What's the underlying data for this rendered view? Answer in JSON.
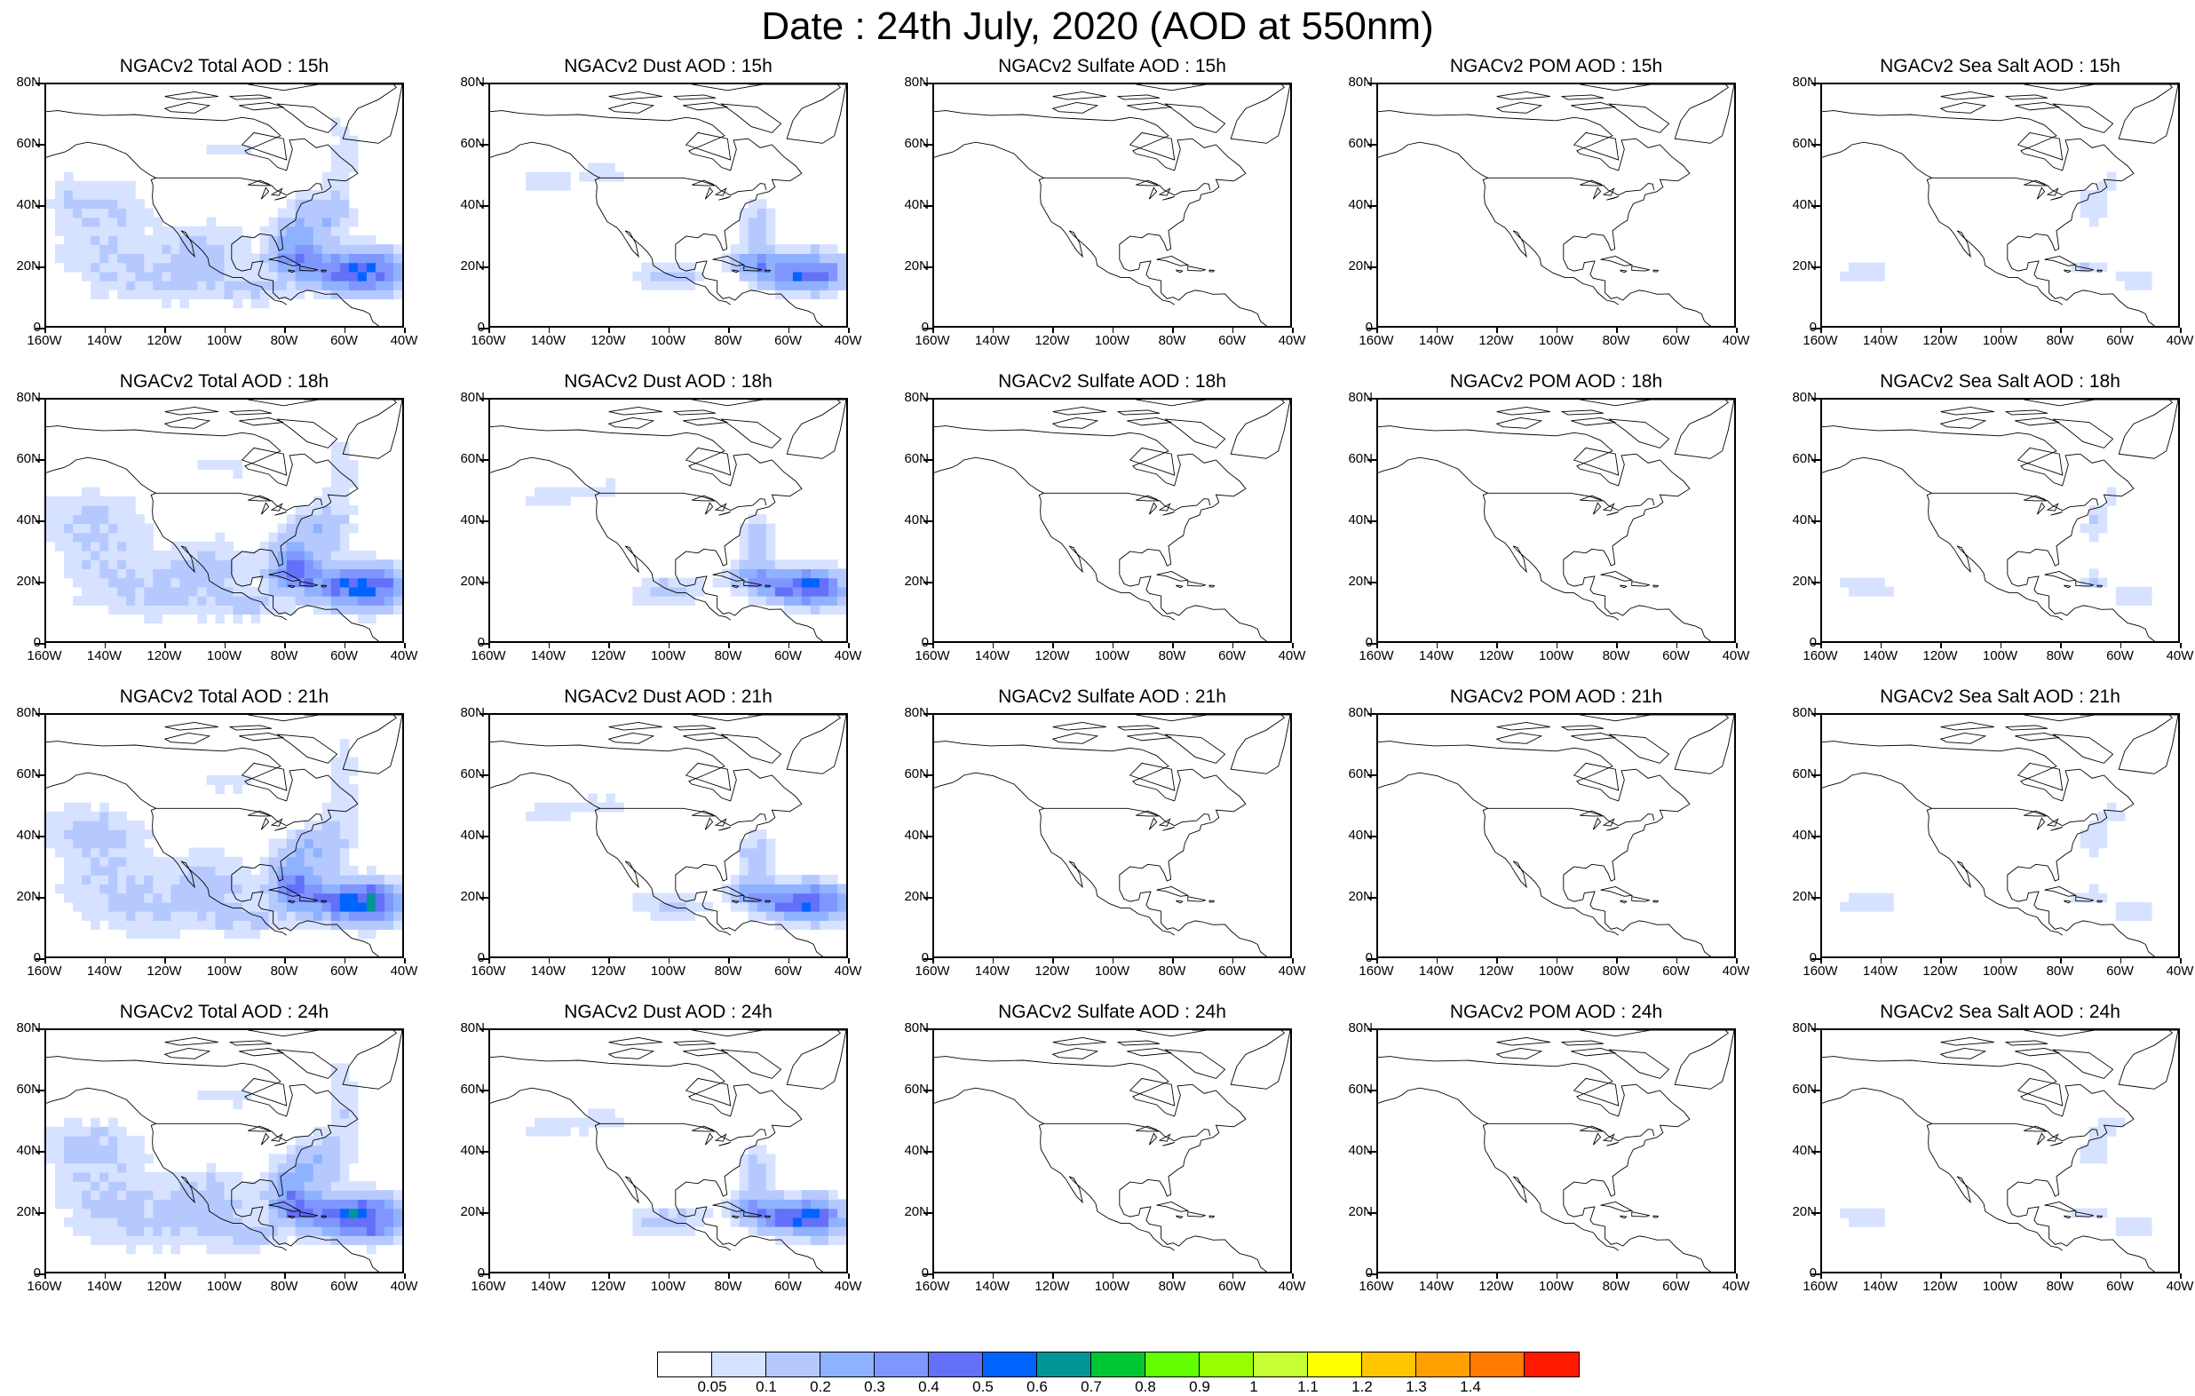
{
  "title": "Date : 24th July, 2020 (AOD at 550nm)",
  "x_tick_labels": [
    "160W",
    "140W",
    "120W",
    "100W",
    "80W",
    "60W",
    "40W"
  ],
  "y_tick_labels": [
    "0",
    "20N",
    "40N",
    "60N",
    "80N"
  ],
  "lon_range": [
    -160,
    -40
  ],
  "lat_range": [
    0,
    80
  ],
  "columns": [
    "Total",
    "Dust",
    "Sulfate",
    "POM",
    "Sea Salt"
  ],
  "rows": [
    "15h",
    "18h",
    "21h",
    "24h"
  ],
  "panels": [
    {
      "title": "NGACv2 Total AOD : 15h",
      "species": "total"
    },
    {
      "title": "NGACv2 Dust AOD : 15h",
      "species": "dust"
    },
    {
      "title": "NGACv2 Sulfate AOD : 15h",
      "species": "sulfate"
    },
    {
      "title": "NGACv2 POM AOD : 15h",
      "species": "pom"
    },
    {
      "title": "NGACv2 Sea Salt AOD : 15h",
      "species": "seasalt"
    },
    {
      "title": "NGACv2 Total AOD : 18h",
      "species": "total"
    },
    {
      "title": "NGACv2 Dust AOD : 18h",
      "species": "dust"
    },
    {
      "title": "NGACv2 Sulfate AOD : 18h",
      "species": "sulfate"
    },
    {
      "title": "NGACv2 POM AOD : 18h",
      "species": "pom"
    },
    {
      "title": "NGACv2 Sea Salt AOD : 18h",
      "species": "seasalt"
    },
    {
      "title": "NGACv2 Total AOD : 21h",
      "species": "total"
    },
    {
      "title": "NGACv2 Dust AOD : 21h",
      "species": "dust"
    },
    {
      "title": "NGACv2 Sulfate AOD : 21h",
      "species": "sulfate"
    },
    {
      "title": "NGACv2 POM AOD : 21h",
      "species": "pom"
    },
    {
      "title": "NGACv2 Sea Salt AOD : 21h",
      "species": "seasalt"
    },
    {
      "title": "NGACv2 Total AOD : 24h",
      "species": "total"
    },
    {
      "title": "NGACv2 Dust AOD : 24h",
      "species": "dust"
    },
    {
      "title": "NGACv2 Sulfate AOD : 24h",
      "species": "sulfate"
    },
    {
      "title": "NGACv2 POM AOD : 24h",
      "species": "pom"
    },
    {
      "title": "NGACv2 Sea Salt  AOD : 24h",
      "species": "seasalt"
    }
  ],
  "colorbar": {
    "labels": [
      "0.05",
      "0.1",
      "0.2",
      "0.3",
      "0.4",
      "0.5",
      "0.6",
      "0.7",
      "0.8",
      "0.9",
      "1",
      "1.1",
      "1.2",
      "1.3",
      "1.4"
    ],
    "colors": [
      "#ffffff",
      "#d6e2ff",
      "#b5c9ff",
      "#8eb2ff",
      "#7f96ff",
      "#6370f8",
      "#0063ff",
      "#009696",
      "#00c633",
      "#63ff00",
      "#96ff00",
      "#c6ff33",
      "#ffff00",
      "#ffc600",
      "#ffa000",
      "#ff7c00",
      "#ff1900"
    ]
  }
}
